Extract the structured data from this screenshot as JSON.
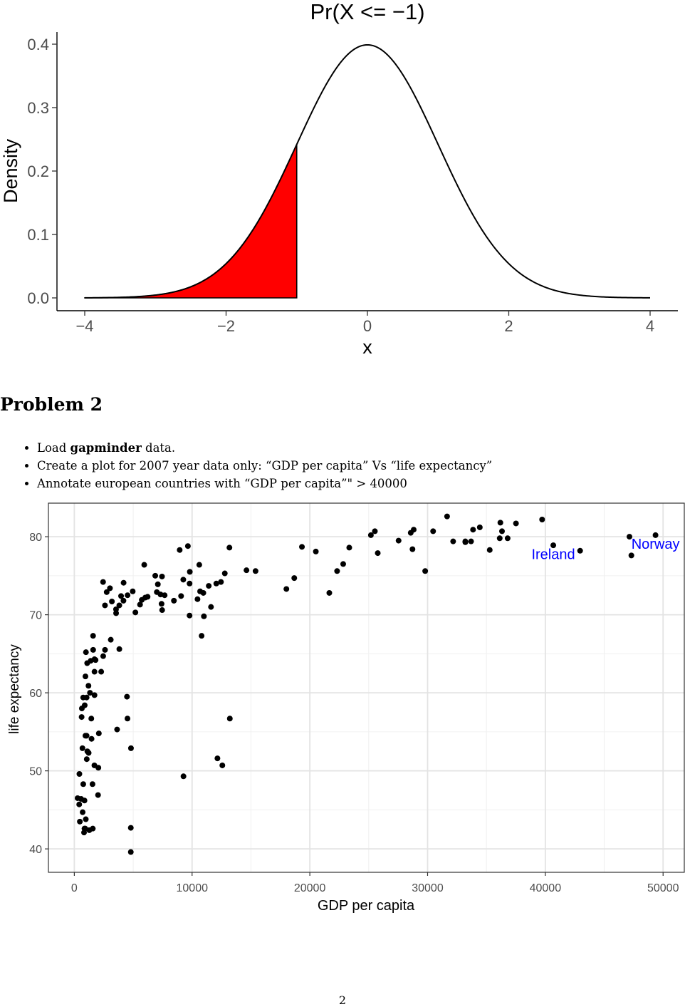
{
  "chart_data": [
    {
      "type": "area",
      "title": "Pr(X <= −1)",
      "xlabel": "x",
      "ylabel": "Density",
      "xlim": [
        -4,
        4
      ],
      "ylim": [
        0,
        0.4
      ],
      "x_ticks": [
        -4,
        -2,
        0,
        2,
        4
      ],
      "x_tick_labels": [
        "−4",
        "−2",
        "0",
        "2",
        "4"
      ],
      "y_ticks": [
        0,
        0.1,
        0.2,
        0.3,
        0.4
      ],
      "y_tick_labels": [
        "0.0",
        "0.1",
        "0.2",
        "0.3",
        "0.4"
      ],
      "series": [
        {
          "name": "standard normal density",
          "mean": 0,
          "sd": 1,
          "x_range": [
            -4,
            4
          ],
          "color": "#000000"
        }
      ],
      "shaded_region": {
        "from": -4,
        "to": -1,
        "color": "#ff0000"
      },
      "grid": false
    },
    {
      "type": "scatter",
      "title": "",
      "xlabel": "GDP per capita",
      "ylabel": "life expectancy",
      "xlim": [
        -2200,
        51800
      ],
      "ylim": [
        37,
        84.3
      ],
      "x_ticks": [
        0,
        10000,
        20000,
        30000,
        40000,
        50000
      ],
      "y_ticks": [
        40,
        50,
        60,
        70,
        80
      ],
      "grid": true,
      "point_color": "#000000",
      "label_color": "#0000ff",
      "annotations": [
        {
          "label": "Ireland",
          "x": 40676,
          "y": 78.885
        },
        {
          "label": "Norway",
          "x": 49357,
          "y": 80.196
        }
      ],
      "points": [
        [
          975,
          43.8
        ],
        [
          5937,
          76.4
        ],
        [
          6223,
          72.3
        ],
        [
          4797,
          42.7
        ],
        [
          12779,
          75.3
        ],
        [
          34435,
          81.2
        ],
        [
          36126,
          79.8
        ],
        [
          29796,
          75.6
        ],
        [
          1391,
          64.1
        ],
        [
          33693,
          79.4
        ],
        [
          1441,
          56.7
        ],
        [
          3822,
          65.6
        ],
        [
          7446,
          74.9
        ],
        [
          12570,
          50.7
        ],
        [
          9066,
          72.4
        ],
        [
          10681,
          73.0
        ],
        [
          1217,
          52.3
        ],
        [
          430,
          49.6
        ],
        [
          1714,
          59.7
        ],
        [
          2042,
          50.4
        ],
        [
          36319,
          80.7
        ],
        [
          706,
          44.7
        ],
        [
          1704,
          50.7
        ],
        [
          13172,
          78.6
        ],
        [
          4959,
          73.0
        ],
        [
          7006,
          72.9
        ],
        [
          986,
          65.2
        ],
        [
          278,
          46.5
        ],
        [
          3633,
          55.3
        ],
        [
          9645,
          78.8
        ],
        [
          1545,
          48.3
        ],
        [
          14619,
          75.7
        ],
        [
          8948,
          78.3
        ],
        [
          22833,
          76.5
        ],
        [
          35278,
          78.3
        ],
        [
          2082,
          54.8
        ],
        [
          6025,
          72.2
        ],
        [
          6873,
          75.0
        ],
        [
          5581,
          71.3
        ],
        [
          5728,
          71.9
        ],
        [
          12154,
          51.6
        ],
        [
          641,
          58.0
        ],
        [
          690,
          52.9
        ],
        [
          33207,
          79.3
        ],
        [
          30470,
          80.7
        ],
        [
          13206,
          56.7
        ],
        [
          753,
          59.4
        ],
        [
          32170,
          79.4
        ],
        [
          1328,
          60.0
        ],
        [
          27538,
          79.5
        ],
        [
          5186,
          70.3
        ],
        [
          943,
          54.5
        ],
        [
          579,
          46.4
        ],
        [
          1202,
          60.9
        ],
        [
          3548,
          70.2
        ],
        [
          39725,
          82.2
        ],
        [
          18009,
          73.3
        ],
        [
          36181,
          81.8
        ],
        [
          2452,
          64.7
        ],
        [
          3541,
          70.7
        ],
        [
          11606,
          71.0
        ],
        [
          4471,
          59.5
        ],
        [
          40676,
          78.9
        ],
        [
          25523,
          80.7
        ],
        [
          28570,
          80.5
        ],
        [
          7321,
          72.6
        ],
        [
          31656,
          82.6
        ],
        [
          4519,
          72.5
        ],
        [
          1463,
          54.1
        ],
        [
          1593,
          67.3
        ],
        [
          23348,
          78.6
        ],
        [
          47307,
          77.6
        ],
        [
          10461,
          72.0
        ],
        [
          1569,
          42.6
        ],
        [
          415,
          45.7
        ],
        [
          12057,
          74.0
        ],
        [
          1044,
          59.4
        ],
        [
          759,
          48.3
        ],
        [
          12452,
          74.2
        ],
        [
          1042,
          54.5
        ],
        [
          1803,
          64.2
        ],
        [
          10957,
          72.8
        ],
        [
          3095,
          66.8
        ],
        [
          9254,
          74.5
        ],
        [
          3820,
          71.2
        ],
        [
          2602,
          71.2
        ],
        [
          824,
          42.1
        ],
        [
          944,
          62.1
        ],
        [
          4811,
          52.9
        ],
        [
          1091,
          63.8
        ],
        [
          36798,
          79.8
        ],
        [
          25185,
          80.2
        ],
        [
          2749,
          72.9
        ],
        [
          620,
          56.9
        ],
        [
          2014,
          46.9
        ],
        [
          49357,
          80.2
        ],
        [
          22316,
          75.6
        ],
        [
          2606,
          65.5
        ],
        [
          9809,
          75.5
        ],
        [
          4173,
          71.8
        ],
        [
          7408,
          71.4
        ],
        [
          3190,
          71.7
        ],
        [
          15390,
          75.6
        ],
        [
          20510,
          78.1
        ],
        [
          19329,
          78.7
        ],
        [
          7670,
          72.5
        ],
        [
          10809,
          67.3
        ],
        [
          863,
          46.2
        ],
        [
          1598,
          65.5
        ],
        [
          1712,
          64.3
        ],
        [
          21655,
          72.8
        ],
        [
          1712,
          62.7
        ],
        [
          9787,
          74.0
        ],
        [
          862,
          42.6
        ],
        [
          47143,
          80.0
        ],
        [
          18678,
          74.7
        ],
        [
          25768,
          77.9
        ],
        [
          926,
          42.6
        ],
        [
          9270,
          49.3
        ],
        [
          28821,
          80.9
        ],
        [
          3970,
          72.4
        ],
        [
          4513,
          56.7
        ],
        [
          4797,
          39.6
        ],
        [
          33860,
          80.9
        ],
        [
          37506,
          81.7
        ],
        [
          4185,
          74.1
        ],
        [
          28718,
          78.4
        ],
        [
          1107,
          52.5
        ],
        [
          7458,
          70.6
        ],
        [
          882,
          58.4
        ],
        [
          11004,
          69.8
        ],
        [
          7093,
          73.9
        ],
        [
          8458,
          71.8
        ],
        [
          1056,
          51.5
        ],
        [
          33203,
          79.4
        ],
        [
          42952,
          78.2
        ],
        [
          10611,
          76.4
        ],
        [
          11416,
          73.7
        ],
        [
          2442,
          74.2
        ],
        [
          3025,
          73.4
        ],
        [
          2281,
          62.7
        ],
        [
          1271,
          42.4
        ],
        [
          470,
          43.5
        ],
        [
          9786,
          69.9
        ]
      ]
    }
  ],
  "problem_heading": "Problem 2",
  "bullets": [
    {
      "prefix": "Load ",
      "bold": "gapminder",
      "suffix": " data."
    },
    {
      "prefix": "Create a plot for 2007 year data only: “GDP per capita” Vs “life expectancy”",
      "bold": "",
      "suffix": ""
    },
    {
      "prefix": "Annotate european countries with “GDP per capita”\" > 40000",
      "bold": "",
      "suffix": ""
    }
  ],
  "page_number": "2"
}
